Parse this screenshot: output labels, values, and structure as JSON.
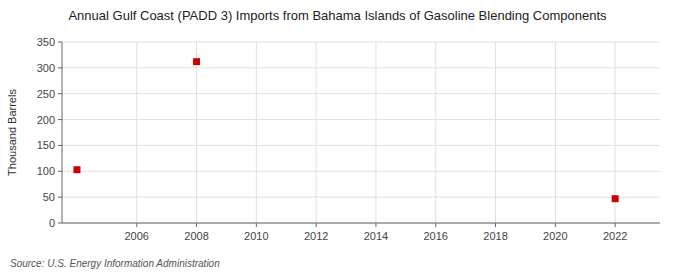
{
  "chart_data": {
    "type": "scatter",
    "title": "Annual Gulf Coast (PADD 3) Imports from Bahama Islands of Gasoline Blending Components",
    "ylabel": "Thousand Barrels",
    "source": "Source: U.S. Energy Information Administration",
    "x": [
      2004,
      2008,
      2022
    ],
    "values": [
      103,
      312,
      47
    ],
    "color": "#cc0000",
    "marker": "square",
    "xlim": [
      2003.5,
      2023.5
    ],
    "ylim": [
      0,
      350
    ],
    "xticks": [
      2006,
      2008,
      2010,
      2012,
      2014,
      2016,
      2018,
      2020,
      2022
    ],
    "yticks": [
      0,
      50,
      100,
      150,
      200,
      250,
      300,
      350
    ],
    "grid": true
  }
}
